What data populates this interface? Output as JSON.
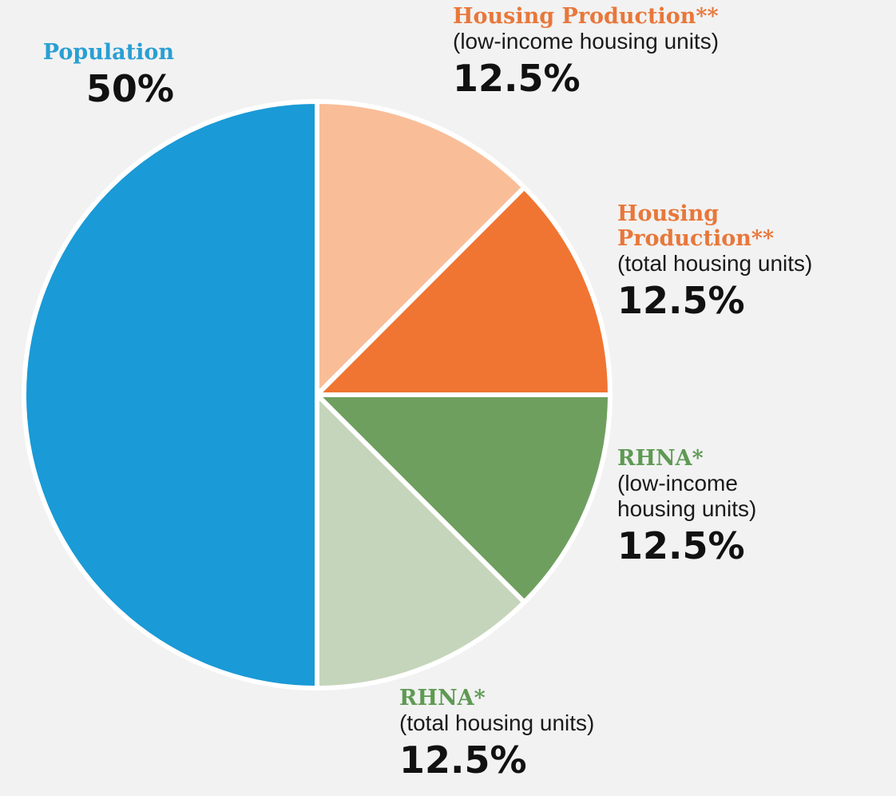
{
  "chart_data": {
    "type": "pie",
    "categories": [
      "Housing Production**",
      "Housing Production**",
      "RHNA*",
      "RHNA*",
      "Population"
    ],
    "descriptions": [
      "(low-income housing units)",
      "(total housing units)",
      "(low-income housing units)",
      "(total housing units)",
      null
    ],
    "values": [
      12.5,
      12.5,
      12.5,
      12.5,
      50
    ],
    "value_labels": [
      "12.5%",
      "12.5%",
      "12.5%",
      "12.5%",
      "50%"
    ],
    "colors": [
      "#f9be98",
      "#f07532",
      "#6f9f5f",
      "#c5d5bb",
      "#1a9ad6"
    ]
  }
}
